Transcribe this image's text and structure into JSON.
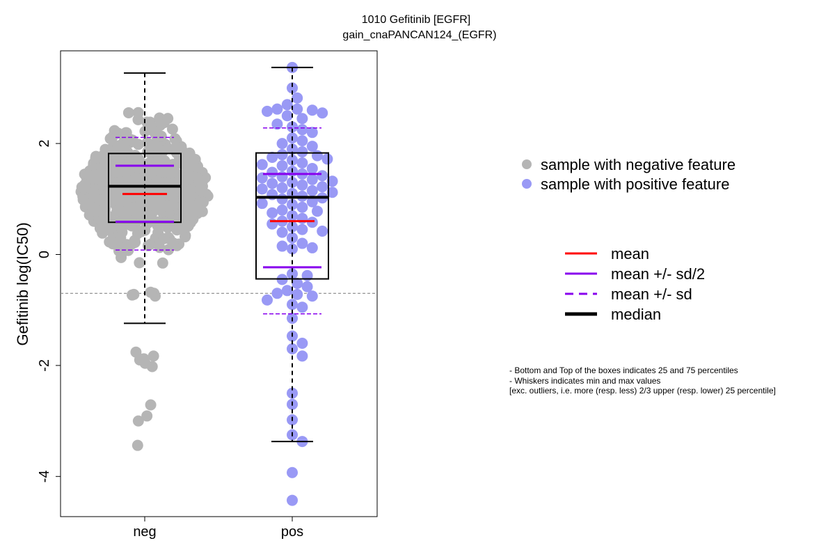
{
  "chart_data": {
    "type": "box-swarm",
    "title_line1": "1010 Gefitinib [EGFR]",
    "title_line2": "gain_cnaPANCAN124_(EGFR)",
    "xlabel": "",
    "ylabel": "Gefitinib log(IC50)",
    "ylim": [
      -4.7,
      3.7
    ],
    "yticks": [
      "-4",
      "-2",
      "0",
      "2"
    ],
    "ytick_values": [
      -4,
      -2,
      0,
      2
    ],
    "categories": [
      "neg",
      "pos"
    ],
    "reference_line": -0.7,
    "colors": {
      "neg": "#b5b5b5",
      "pos": "#9999f5",
      "mean": "#ff0000",
      "sd": "#8800ee",
      "median": "#000000",
      "box": "#000000",
      "reference": "#888888"
    },
    "groups": [
      {
        "name": "neg",
        "stats": {
          "q1": 0.58,
          "median": 1.23,
          "q3": 1.82,
          "mean": 1.09,
          "mean_plus_half_sd": 1.6,
          "mean_minus_half_sd": 0.59,
          "mean_plus_sd": 2.11,
          "mean_minus_sd": 0.08,
          "whisker_low": -1.24,
          "whisker_high": 3.27
        },
        "n_points": 600,
        "notable_points": [
          -2.71,
          -2.91,
          -3.0,
          -3.44,
          -2.02,
          -1.96,
          -1.9,
          -1.88,
          -1.83,
          -1.76
        ]
      },
      {
        "name": "pos",
        "stats": {
          "q1": -0.44,
          "median": 1.03,
          "q3": 1.83,
          "mean": 0.6,
          "mean_plus_half_sd": 1.45,
          "mean_minus_half_sd": -0.23,
          "mean_plus_sd": 2.28,
          "mean_minus_sd": -1.07,
          "whisker_low": -3.37,
          "whisker_high": 3.37
        },
        "values": [
          3.37,
          3.0,
          2.82,
          2.7,
          2.62,
          2.62,
          2.6,
          2.58,
          2.55,
          2.5,
          2.45,
          2.35,
          2.3,
          2.25,
          2.2,
          2.1,
          2.05,
          2.0,
          1.95,
          1.9,
          1.85,
          1.8,
          1.78,
          1.75,
          1.72,
          1.7,
          1.65,
          1.62,
          1.6,
          1.55,
          1.5,
          1.48,
          1.45,
          1.42,
          1.4,
          1.38,
          1.35,
          1.32,
          1.3,
          1.28,
          1.25,
          1.22,
          1.2,
          1.18,
          1.15,
          1.12,
          1.1,
          1.08,
          1.05,
          1.02,
          1.0,
          0.95,
          0.92,
          0.9,
          0.85,
          0.8,
          0.78,
          0.75,
          0.7,
          0.65,
          0.6,
          0.58,
          0.55,
          0.5,
          0.45,
          0.42,
          0.4,
          0.3,
          0.2,
          0.15,
          0.12,
          0.1,
          -0.35,
          -0.38,
          -0.45,
          -0.52,
          -0.58,
          -0.65,
          -0.7,
          -0.72,
          -0.75,
          -0.82,
          -0.9,
          -0.95,
          -1.15,
          -1.47,
          -1.6,
          -1.7,
          -1.83,
          -2.5,
          -2.7,
          -2.98,
          -3.25,
          -3.37,
          -3.93,
          -4.43
        ]
      }
    ],
    "legend_points": [
      {
        "label": "sample with negative feature",
        "color": "#b5b5b5"
      },
      {
        "label": "sample with positive feature",
        "color": "#9999f5"
      }
    ],
    "legend_lines": [
      {
        "label": "mean",
        "color": "#ff0000",
        "style": "solid"
      },
      {
        "label": "mean +/- sd/2",
        "color": "#8800ee",
        "style": "solid"
      },
      {
        "label": "mean +/- sd",
        "color": "#8800ee",
        "style": "dashed"
      },
      {
        "label": "median",
        "color": "#000000",
        "style": "thick"
      }
    ],
    "notes": [
      "- Bottom and Top of the boxes indicates 25 and 75 percentiles",
      "- Whiskers indicates min and max values",
      "[exc. outliers, i.e. more (resp. less) 2/3 upper (resp. lower) 25 percentile]"
    ]
  }
}
